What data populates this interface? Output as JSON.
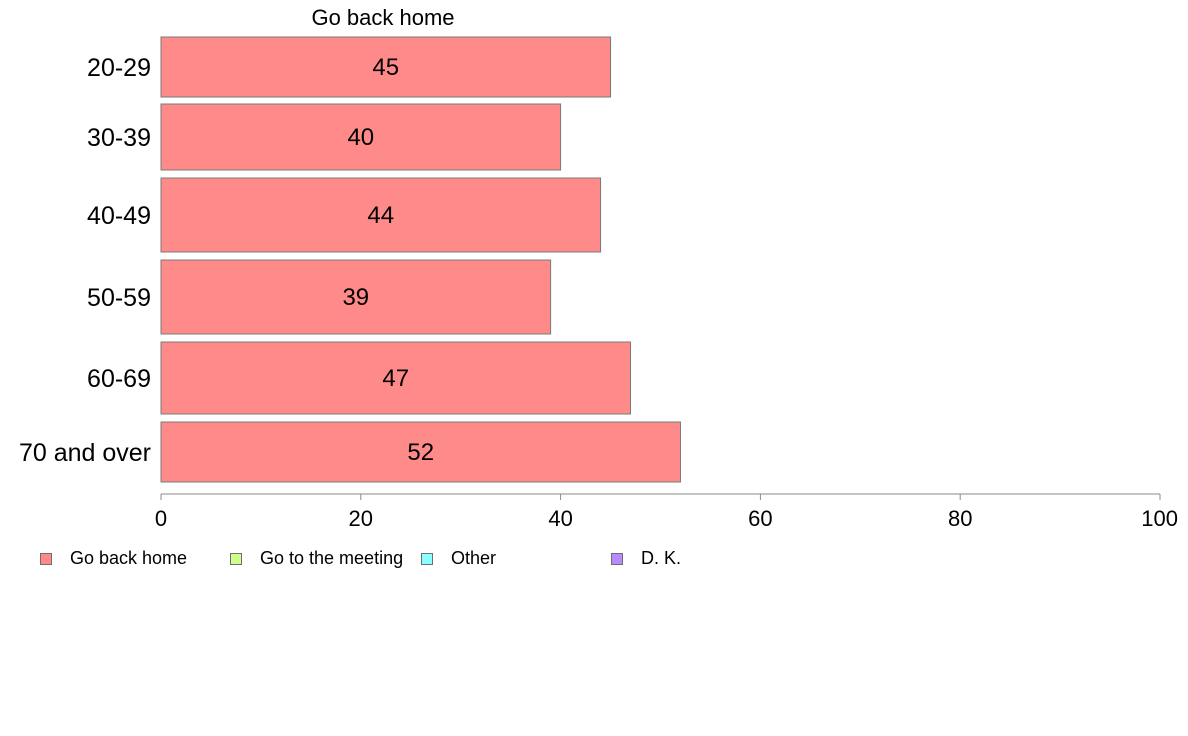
{
  "chart_data": {
    "type": "bar",
    "orientation": "horizontal",
    "title": "Go back home",
    "categories": [
      "20-29",
      "30-39",
      "40-49",
      "50-59",
      "60-69",
      "70 and over"
    ],
    "series": [
      {
        "name": "Go back home",
        "values": [
          45,
          40,
          44,
          39,
          47,
          52
        ]
      }
    ],
    "data_labels": [
      "45",
      "40",
      "44",
      "39",
      "47",
      "52"
    ],
    "xlim": [
      0,
      100
    ],
    "xticks": [
      0,
      20,
      40,
      60,
      80,
      100
    ],
    "xtick_labels": [
      "0",
      "20",
      "40",
      "60",
      "80",
      "100"
    ],
    "grid": false,
    "legend": {
      "placement": "bottom",
      "items": [
        {
          "label": "Go back home",
          "color": "#ff8a8a"
        },
        {
          "label": "Go to the meeting",
          "color": "#cfff8a"
        },
        {
          "label": "Other",
          "color": "#8affff"
        },
        {
          "label": "D. K.",
          "color": "#b98aff"
        }
      ]
    },
    "colors": {
      "bar": "#ff8a8a",
      "bar_stroke": "#7a7a7a",
      "axis": "#8a8a8a"
    }
  }
}
